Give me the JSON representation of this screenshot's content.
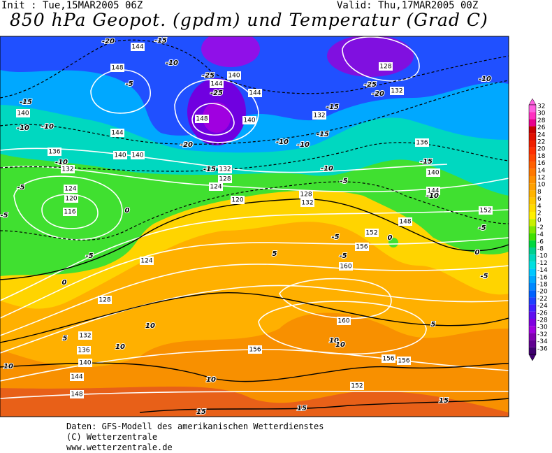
{
  "header": {
    "init": "Init : Tue,15MAR2005 06Z",
    "valid": "Valid: Thu,17MAR2005 00Z",
    "title": "850 hPa Geopot. (gpdm) und Temperatur (Grad C)"
  },
  "map": {
    "geopotential_labels": [
      144,
      148,
      140,
      144,
      136,
      140,
      140,
      132,
      124,
      120,
      116,
      144,
      140,
      144,
      148,
      140,
      132,
      128,
      124,
      120,
      128,
      132,
      132,
      128,
      132,
      136,
      140,
      144,
      152,
      148,
      152,
      156,
      160,
      160,
      156,
      156,
      156,
      152,
      148,
      144,
      140,
      136,
      132,
      128,
      124
    ],
    "temperature_labels": [
      -20,
      -15,
      -10,
      -5,
      -15,
      -10,
      -10,
      -25,
      -25,
      -20,
      -10,
      -10,
      -15,
      -15,
      -15,
      -10,
      -5,
      -25,
      -20,
      -10,
      -15,
      -10,
      -5,
      0,
      -5,
      0,
      -5,
      -5,
      -10,
      -5,
      0,
      5,
      10,
      10,
      10,
      10,
      15,
      15,
      10,
      10,
      15,
      5,
      0,
      -5,
      -5,
      5
    ]
  },
  "colorbar": {
    "labels": [
      32,
      30,
      28,
      26,
      24,
      22,
      20,
      18,
      16,
      14,
      12,
      10,
      8,
      6,
      4,
      2,
      0,
      -2,
      -4,
      -6,
      -8,
      -10,
      -12,
      -14,
      -16,
      -18,
      -20,
      -22,
      -24,
      -26,
      -28,
      -30,
      -32,
      -34,
      -36
    ],
    "colors": [
      "#ff60e0",
      "#ff30c0",
      "#e8008c",
      "#c80000",
      "#e01000",
      "#f02000",
      "#ff3000",
      "#ff4800",
      "#ff6000",
      "#ff7800",
      "#ff9000",
      "#ffa000",
      "#ffb400",
      "#ffc800",
      "#ffdc00",
      "#fff000",
      "#c8f000",
      "#80e800",
      "#40e000",
      "#00d840",
      "#00d090",
      "#00d8c0",
      "#00e0e0",
      "#00c8ff",
      "#00a8ff",
      "#0088ff",
      "#0060ff",
      "#2040ff",
      "#4020ff",
      "#6010f0",
      "#8000e0",
      "#a000e0",
      "#8000b0",
      "#600090",
      "#400070"
    ]
  },
  "footer": {
    "line1": "Daten: GFS-Modell des amerikanischen Wetterdienstes",
    "line2": "(C) Wetterzentrale",
    "line3": "www.wetterzentrale.de"
  }
}
